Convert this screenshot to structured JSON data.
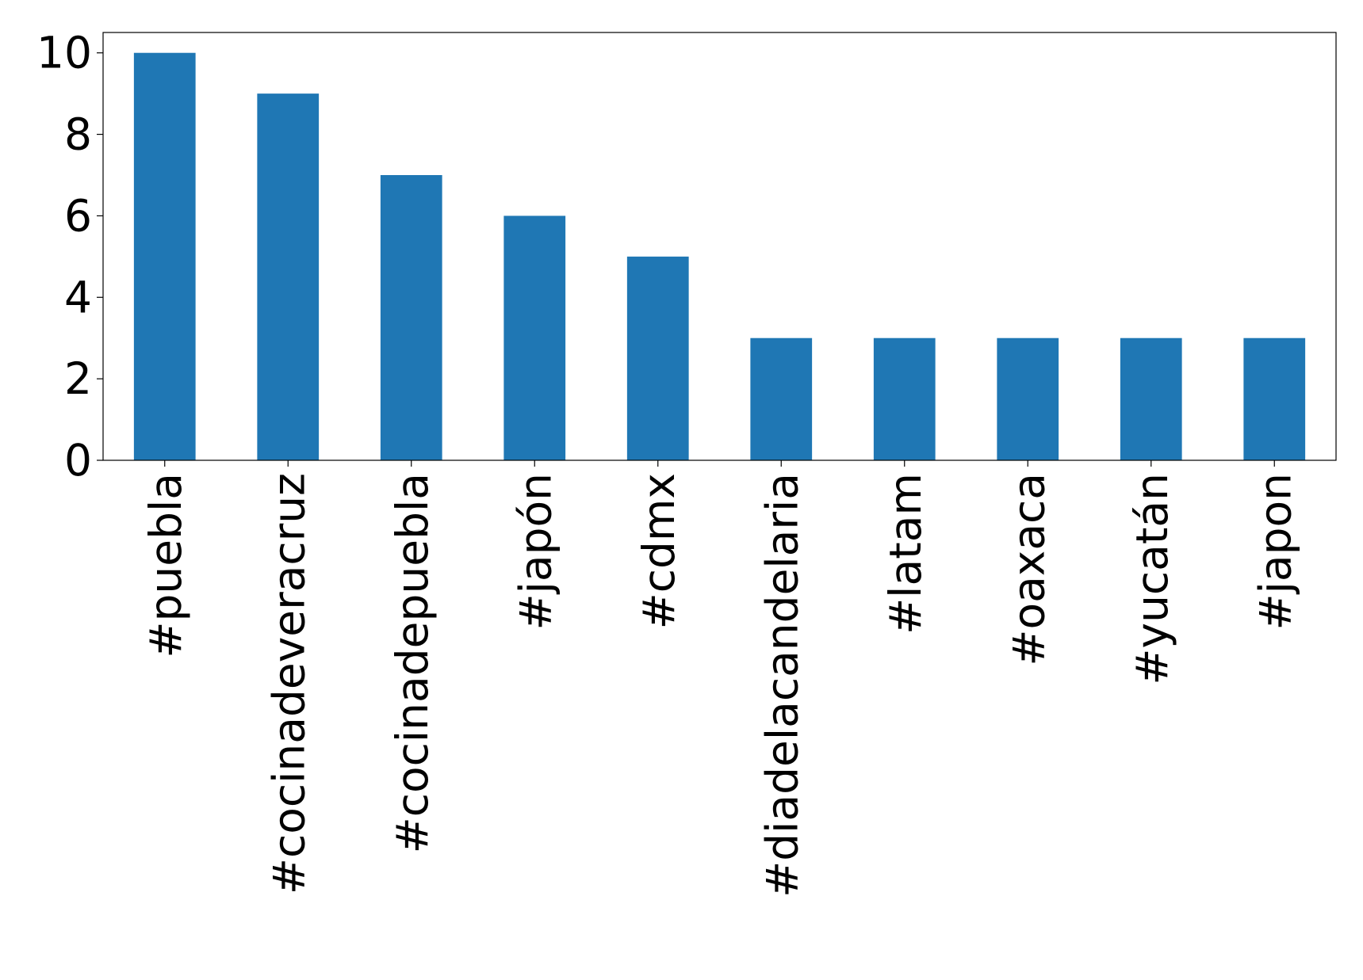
{
  "chart_data": {
    "type": "bar",
    "categories": [
      "#puebla",
      "#cocinadeveracruz",
      "#cocinadepuebla",
      "#japón",
      "#cdmx",
      "#diadelacandelaria",
      "#latam",
      "#oaxaca",
      "#yucatán",
      "#japon"
    ],
    "values": [
      10,
      9,
      7,
      6,
      5,
      3,
      3,
      3,
      3,
      3
    ],
    "color": "#1f77b4",
    "ylim": [
      0,
      10.5
    ],
    "yticks": [
      0,
      2,
      4,
      6,
      8,
      10
    ],
    "grid": false
  }
}
